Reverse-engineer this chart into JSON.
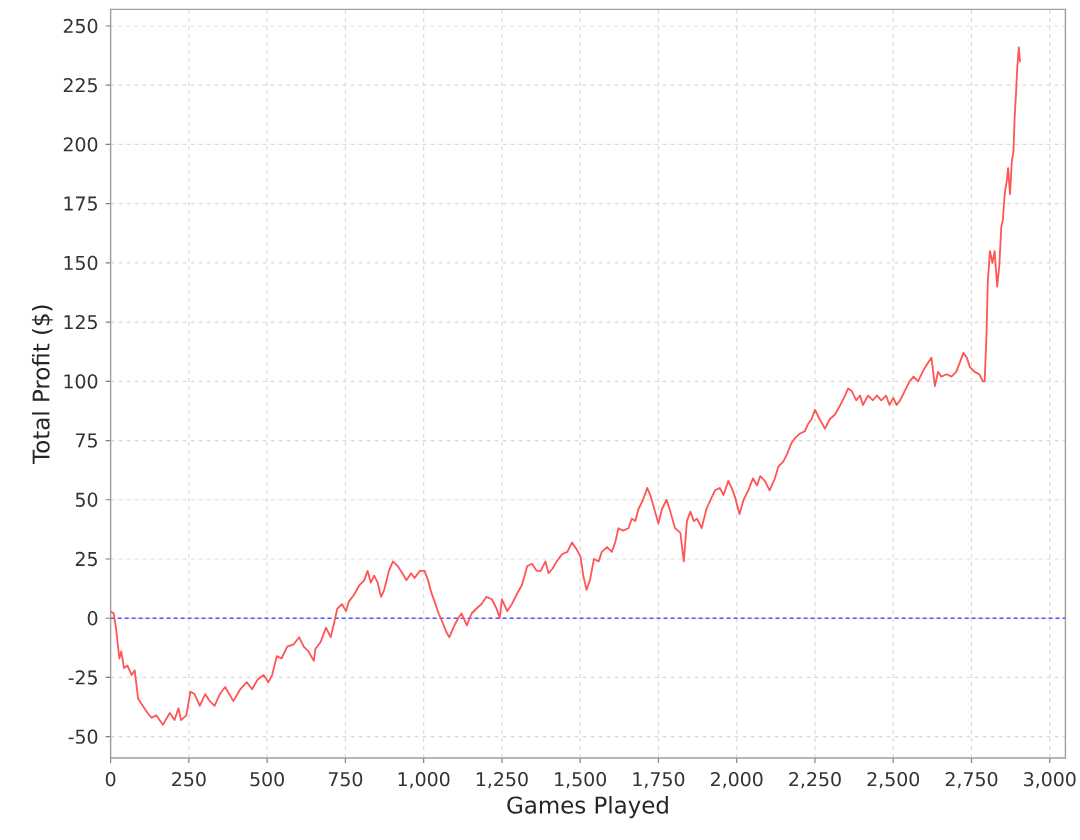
{
  "chart_data": {
    "type": "line",
    "xlabel": "Games Played",
    "ylabel": "Total Profit ($)",
    "x": [
      0,
      10,
      17,
      28,
      34,
      43,
      54,
      67,
      77,
      88,
      103,
      118,
      131,
      146,
      167,
      189,
      204,
      217,
      225,
      242,
      255,
      268,
      285,
      302,
      317,
      332,
      349,
      366,
      392,
      414,
      435,
      452,
      469,
      489,
      504,
      516,
      531,
      546,
      564,
      585,
      602,
      617,
      632,
      649,
      654,
      671,
      688,
      703,
      714,
      724,
      739,
      752,
      761,
      778,
      795,
      810,
      821,
      831,
      842,
      853,
      864,
      874,
      889,
      902,
      917,
      932,
      945,
      960,
      971,
      988,
      1003,
      1014,
      1024,
      1035,
      1048,
      1061,
      1073,
      1082,
      1095,
      1110,
      1121,
      1138,
      1153,
      1168,
      1185,
      1200,
      1218,
      1233,
      1243,
      1250,
      1267,
      1282,
      1297,
      1314,
      1331,
      1346,
      1361,
      1374,
      1389,
      1399,
      1412,
      1425,
      1442,
      1459,
      1474,
      1489,
      1501,
      1510,
      1520,
      1531,
      1544,
      1559,
      1569,
      1586,
      1601,
      1612,
      1622,
      1637,
      1654,
      1665,
      1676,
      1686,
      1701,
      1714,
      1724,
      1739,
      1750,
      1761,
      1776,
      1788,
      1803,
      1820,
      1831,
      1841,
      1852,
      1863,
      1873,
      1888,
      1903,
      1920,
      1931,
      1946,
      1958,
      1973,
      1984,
      1995,
      2009,
      2022,
      2037,
      2052,
      2065,
      2075,
      2090,
      2105,
      2122,
      2133,
      2148,
      2160,
      2175,
      2186,
      2203,
      2218,
      2228,
      2239,
      2250,
      2265,
      2282,
      2297,
      2314,
      2331,
      2346,
      2356,
      2367,
      2382,
      2394,
      2403,
      2420,
      2435,
      2448,
      2462,
      2477,
      2488,
      2500,
      2511,
      2522,
      2537,
      2552,
      2565,
      2579,
      2594,
      2607,
      2622,
      2633,
      2643,
      2653,
      2671,
      2686,
      2701,
      2713,
      2724,
      2735,
      2745,
      2760,
      2775,
      2786,
      2792,
      2798,
      2802,
      2809,
      2817,
      2824,
      2832,
      2839,
      2845,
      2850,
      2856,
      2862,
      2867,
      2873,
      2879,
      2884,
      2888,
      2892,
      2896,
      2901,
      2905
    ],
    "series": [
      {
        "color": "#ff5555",
        "values": [
          3,
          2,
          -4,
          -17,
          -14,
          -21,
          -20,
          -24,
          -22,
          -34,
          -37,
          -40,
          -42,
          -41,
          -45,
          -40,
          -43,
          -38,
          -43,
          -41,
          -31,
          -32,
          -37,
          -32,
          -35,
          -37,
          -32,
          -29,
          -35,
          -30,
          -27,
          -30,
          -26,
          -24,
          -27,
          -24,
          -16,
          -17,
          -12,
          -11,
          -8,
          -12,
          -14,
          -18,
          -13,
          -10,
          -4,
          -8,
          -2,
          4,
          6,
          3,
          7,
          10,
          14,
          16,
          20,
          15,
          18,
          15,
          9,
          12,
          20,
          24,
          22,
          19,
          16,
          19,
          17,
          20,
          20,
          16,
          11,
          7,
          2,
          -2,
          -6,
          -8,
          -4,
          0,
          2,
          -3,
          2,
          4,
          6,
          9,
          8,
          4,
          0,
          8,
          3,
          6,
          10,
          14,
          22,
          23,
          20,
          20,
          24,
          19,
          21,
          24,
          27,
          28,
          32,
          29,
          26,
          18,
          12,
          16,
          25,
          24,
          28,
          30,
          28,
          32,
          38,
          37,
          38,
          42,
          41,
          46,
          50,
          55,
          52,
          45,
          40,
          46,
          50,
          45,
          38,
          36,
          24,
          41,
          45,
          41,
          42,
          38,
          46,
          51,
          54,
          55,
          52,
          58,
          55,
          51,
          44,
          50,
          54,
          59,
          56,
          60,
          58,
          54,
          59,
          64,
          66,
          69,
          74,
          76,
          78,
          79,
          82,
          84,
          88,
          84,
          80,
          84,
          86,
          90,
          94,
          97,
          96,
          92,
          94,
          90,
          94,
          92,
          94,
          92,
          94,
          90,
          93,
          90,
          92,
          96,
          100,
          102,
          100,
          104,
          107,
          110,
          98,
          104,
          102,
          103,
          102,
          104,
          108,
          112,
          110,
          106,
          104,
          103,
          100,
          100,
          120,
          142,
          155,
          150,
          155,
          140,
          149,
          165,
          168,
          179,
          184,
          190,
          179,
          193,
          197,
          212,
          221,
          232,
          241,
          235
        ]
      }
    ],
    "xlim": [
      0,
      3050
    ],
    "ylim": [
      -59,
      257
    ],
    "xticks": [
      0,
      250,
      500,
      750,
      {
        "value": 1000,
        "label": "1,000"
      },
      {
        "value": 1250,
        "label": "1,250"
      },
      {
        "value": 1500,
        "label": "1,500"
      },
      {
        "value": 1750,
        "label": "1,750"
      },
      {
        "value": 2000,
        "label": "2,000"
      },
      {
        "value": 2250,
        "label": "2,250"
      },
      {
        "value": 2500,
        "label": "2,500"
      },
      {
        "value": 2750,
        "label": "2,750"
      },
      {
        "value": 3000,
        "label": "3,000"
      }
    ],
    "yticks": [
      -50,
      -25,
      0,
      25,
      50,
      75,
      100,
      125,
      150,
      175,
      200,
      225,
      250
    ],
    "grid": true,
    "ref_lines": [
      {
        "axis": "y",
        "value": 0,
        "color": "#5555ff",
        "line_style": "dashed"
      }
    ]
  }
}
